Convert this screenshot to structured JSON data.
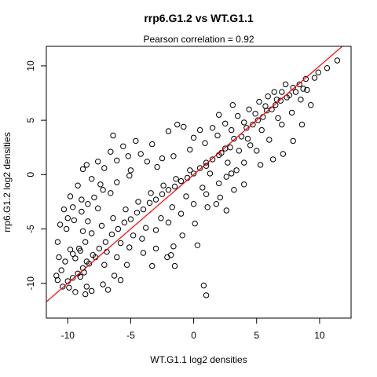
{
  "chart_data": {
    "type": "scatter",
    "title": "rrp6.G1.2 vs WT.G1.1",
    "subtitle": "Pearson correlation =  0.92",
    "xlabel": "WT.G1.1 log2 densities",
    "ylabel": "rrp6.G1.2 log2 densities",
    "xlim": [
      -11.7,
      12.5
    ],
    "ylim": [
      -13.2,
      11.8
    ],
    "xticks": [
      -10,
      -5,
      0,
      5,
      10
    ],
    "yticks": [
      -10,
      -5,
      0,
      5,
      10
    ],
    "tick_labels_x": [
      "-10",
      "-5",
      "0",
      "5",
      "10"
    ],
    "tick_labels_y": [
      "-10",
      "-5",
      "0",
      "5",
      "10"
    ],
    "grid": false,
    "legend": "none",
    "marker": "open-circle",
    "point_color": "#000000",
    "fit_line": {
      "label": "identity line y = x",
      "slope": 1,
      "intercept": 0,
      "color": "#ff0000"
    },
    "points": [
      [
        11.4,
        10.5
      ],
      [
        10.6,
        9.8
      ],
      [
        9.9,
        9.4
      ],
      [
        9.6,
        8.9
      ],
      [
        8.9,
        8.8
      ],
      [
        8.4,
        8.3
      ],
      [
        7.9,
        8.0
      ],
      [
        7.6,
        7.3
      ],
      [
        7.3,
        8.3
      ],
      [
        7.0,
        7.6
      ],
      [
        6.9,
        6.8
      ],
      [
        6.5,
        6.4
      ],
      [
        6.2,
        6.0
      ],
      [
        5.8,
        5.9
      ],
      [
        5.5,
        5.3
      ],
      [
        5.1,
        5.0
      ],
      [
        4.7,
        4.6
      ],
      [
        4.2,
        4.3
      ],
      [
        3.8,
        3.5
      ],
      [
        3.2,
        3.3
      ],
      [
        2.9,
        2.5
      ],
      [
        2.5,
        2.4
      ],
      [
        2.0,
        1.8
      ],
      [
        1.5,
        1.4
      ],
      [
        1.0,
        0.8
      ],
      [
        0.5,
        0.6
      ],
      [
        0.0,
        0.1
      ],
      [
        -0.5,
        -0.3
      ],
      [
        -1.0,
        -0.6
      ],
      [
        -1.5,
        -1.1
      ],
      [
        -2.0,
        -1.4
      ],
      [
        -2.5,
        -1.8
      ],
      [
        -3.0,
        -2.3
      ],
      [
        -3.5,
        -2.6
      ],
      [
        -4.0,
        -3.2
      ],
      [
        -4.5,
        -3.5
      ],
      [
        -5.0,
        -4.1
      ],
      [
        -5.5,
        -4.4
      ],
      [
        -6.0,
        -5.0
      ],
      [
        -6.5,
        -5.5
      ],
      [
        -7.0,
        -6.2
      ],
      [
        -7.5,
        -6.8
      ],
      [
        -8.0,
        -7.4
      ],
      [
        -8.5,
        -8.0
      ],
      [
        -8.8,
        -8.6
      ],
      [
        -9.2,
        -9.1
      ],
      [
        -9.6,
        -9.5
      ],
      [
        -10.0,
        -9.8
      ],
      [
        -10.4,
        -10.3
      ],
      [
        -10.9,
        -9.3
      ],
      [
        -10.8,
        -9.7
      ],
      [
        -6.4,
        3.6
      ],
      [
        -4.2,
        1.9
      ],
      [
        -3.3,
        2.8
      ],
      [
        -2.0,
        4.0
      ],
      [
        -1.3,
        4.6
      ],
      [
        -0.8,
        4.4
      ],
      [
        0.5,
        4.1
      ],
      [
        1.5,
        4.3
      ],
      [
        2.5,
        4.7
      ],
      [
        3.5,
        5.4
      ],
      [
        4.4,
        6.0
      ],
      [
        5.2,
        6.7
      ],
      [
        5.9,
        7.2
      ],
      [
        6.4,
        7.6
      ],
      [
        3.1,
        6.4
      ],
      [
        2.0,
        5.5
      ],
      [
        0.0,
        3.4
      ],
      [
        -2.5,
        1.5
      ],
      [
        -5.1,
        -0.1
      ],
      [
        -6.6,
        -1.7
      ],
      [
        -7.6,
        -3.1
      ],
      [
        -8.4,
        -4.3
      ],
      [
        -8.8,
        -5.2
      ],
      [
        -9.1,
        -6.8
      ],
      [
        -9.6,
        -7.3
      ],
      [
        -10.2,
        -8.0
      ],
      [
        2.1,
        -2.1
      ],
      [
        1.8,
        -2.7
      ],
      [
        2.6,
        -3.3
      ],
      [
        3.2,
        -1.4
      ],
      [
        4.0,
        -0.9
      ],
      [
        5.3,
        0.9
      ],
      [
        6.3,
        1.4
      ],
      [
        7.1,
        1.9
      ],
      [
        7.9,
        3.1
      ],
      [
        8.6,
        4.6
      ],
      [
        9.3,
        6.4
      ],
      [
        4.5,
        2.7
      ],
      [
        3.4,
        0.4
      ],
      [
        2.6,
        -0.2
      ],
      [
        1.1,
        -3.0
      ],
      [
        0.1,
        -4.5
      ],
      [
        -0.9,
        -5.6
      ],
      [
        -1.6,
        -6.6
      ],
      [
        -3.0,
        -6.8
      ],
      [
        -4.0,
        -7.2
      ],
      [
        -5.3,
        -8.3
      ],
      [
        -6.3,
        -9.3
      ],
      [
        -7.2,
        -10.1
      ],
      [
        -8.1,
        -10.7
      ],
      [
        -8.6,
        -11.0
      ],
      [
        -6.8,
        -10.6
      ],
      [
        -5.8,
        -9.7
      ],
      [
        -3.3,
        -8.4
      ],
      [
        -2.1,
        -7.6
      ],
      [
        -1.5,
        -8.4
      ],
      [
        0.3,
        -6.5
      ],
      [
        0.8,
        -10.2
      ],
      [
        1.0,
        -11.1
      ],
      [
        -1.8,
        -7.4
      ],
      [
        2.7,
        1.1
      ],
      [
        1.3,
        0.1
      ],
      [
        0.7,
        -1.2
      ],
      [
        -0.6,
        -2.0
      ],
      [
        -1.7,
        -3.0
      ],
      [
        -2.6,
        -4.0
      ],
      [
        -3.8,
        -4.9
      ],
      [
        -4.8,
        -5.6
      ],
      [
        -5.8,
        -6.3
      ],
      [
        -6.9,
        -7.1
      ],
      [
        -7.8,
        -7.6
      ],
      [
        -8.3,
        -8.2
      ],
      [
        -8.7,
        -9.0
      ],
      [
        -9.0,
        -9.4
      ],
      [
        -9.4,
        -7.7
      ],
      [
        -9.8,
        -6.9
      ],
      [
        -10.1,
        -5.0
      ],
      [
        -9.5,
        -4.2
      ],
      [
        -8.9,
        -3.4
      ],
      [
        -8.4,
        -2.7
      ],
      [
        -7.9,
        -2.1
      ],
      [
        -7.2,
        -1.4
      ],
      [
        -6.1,
        -0.7
      ],
      [
        -5.0,
        0.4
      ],
      [
        -3.7,
        1.2
      ],
      [
        -2.9,
        0.7
      ],
      [
        -1.6,
        1.7
      ],
      [
        -0.3,
        2.3
      ],
      [
        0.9,
        2.9
      ],
      [
        1.9,
        3.6
      ],
      [
        3.0,
        4.1
      ],
      [
        4.0,
        4.8
      ],
      [
        4.9,
        5.6
      ],
      [
        5.7,
        6.3
      ],
      [
        6.6,
        6.9
      ],
      [
        7.4,
        7.1
      ],
      [
        8.1,
        7.6
      ],
      [
        8.7,
        7.9
      ],
      [
        6.7,
        5.2
      ],
      [
        5.4,
        4.1
      ],
      [
        4.3,
        3.3
      ],
      [
        3.6,
        2.2
      ],
      [
        2.2,
        2.0
      ],
      [
        1.0,
        1.1
      ],
      [
        -0.3,
        0.4
      ],
      [
        -1.4,
        -0.4
      ],
      [
        -2.4,
        -1.0
      ],
      [
        -3.4,
        -1.7
      ],
      [
        -4.4,
        -2.5
      ],
      [
        -5.4,
        -3.2
      ],
      [
        -6.4,
        -4.0
      ],
      [
        -7.3,
        -4.7
      ],
      [
        -8.1,
        -5.4
      ],
      [
        -8.6,
        -6.2
      ],
      [
        -9.0,
        -7.0
      ],
      [
        -7.1,
        -8.3
      ],
      [
        -6.1,
        -7.6
      ],
      [
        -5.1,
        -6.7
      ],
      [
        -4.1,
        -5.9
      ],
      [
        -3.0,
        -5.1
      ],
      [
        -2.0,
        -4.4
      ],
      [
        -1.0,
        -3.6
      ],
      [
        0.0,
        -2.7
      ],
      [
        1.0,
        -1.8
      ],
      [
        2.0,
        -0.8
      ],
      [
        3.0,
        0.1
      ],
      [
        4.0,
        1.1
      ],
      [
        5.0,
        2.2
      ],
      [
        6.0,
        3.2
      ],
      [
        7.0,
        4.6
      ],
      [
        7.8,
        5.7
      ],
      [
        8.5,
        6.9
      ],
      [
        9.0,
        7.8
      ],
      [
        -8.8,
        0.5
      ],
      [
        -9.2,
        -1.0
      ],
      [
        -9.6,
        -3.0
      ],
      [
        -10.0,
        -4.0
      ],
      [
        -8.5,
        0.9
      ],
      [
        -7.6,
        1.2
      ],
      [
        -6.6,
        2.1
      ],
      [
        -5.6,
        2.6
      ],
      [
        -4.6,
        3.1
      ],
      [
        -7.1,
        0.6
      ],
      [
        -6.1,
        1.3
      ],
      [
        -5.2,
        1.7
      ],
      [
        -8.1,
        -0.4
      ],
      [
        -7.4,
        -0.9
      ],
      [
        -8.9,
        -2.3
      ],
      [
        -9.8,
        -2.0
      ],
      [
        -10.3,
        -3.2
      ],
      [
        -10.6,
        -4.6
      ],
      [
        -10.8,
        -6.2
      ],
      [
        -10.7,
        -7.6
      ],
      [
        -10.5,
        -8.8
      ],
      [
        -9.9,
        -10.4
      ],
      [
        -9.4,
        -10.8
      ],
      [
        -8.5,
        -10.3
      ]
    ]
  }
}
